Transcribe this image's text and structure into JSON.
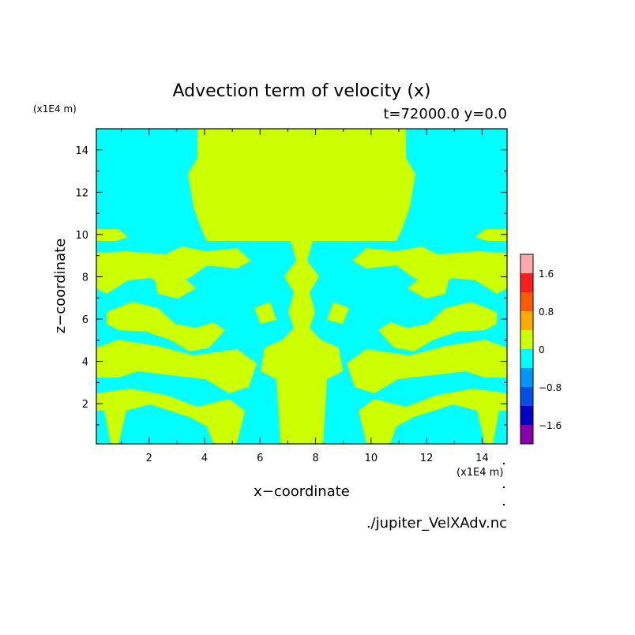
{
  "chart_data": {
    "type": "heatmap",
    "title": "Advection term of velocity (x)",
    "subtitle": "t=72000.0 y=0.0",
    "xlabel": "x−coordinate",
    "ylabel": "z−coordinate",
    "x_unit": "(x1E4 m)",
    "y_unit": "(x1E4 m)",
    "xlim": [
      0.1,
      14.9
    ],
    "ylim": [
      0.1,
      15.0
    ],
    "x_ticks": [
      2,
      4,
      6,
      8,
      10,
      12,
      14
    ],
    "y_ticks": [
      2,
      4,
      6,
      8,
      10,
      12,
      14
    ],
    "x_tick_labels": [
      "2",
      "4",
      "6",
      "8",
      "10",
      "12",
      "14"
    ],
    "y_tick_labels": [
      "2",
      "4",
      "6",
      "8",
      "10",
      "12",
      "14"
    ],
    "colorbar": {
      "levels": [
        -2.0,
        -1.6,
        -1.2,
        -0.8,
        -0.4,
        0,
        0.4,
        0.8,
        1.2,
        1.6,
        2.0
      ],
      "colors": [
        "#8800aa",
        "#0000c8",
        "#0050e6",
        "#0096ff",
        "#00ffff",
        "#ccff00",
        "#ffaa00",
        "#ff5a00",
        "#ff1e1e",
        "#ffaaaa"
      ],
      "tick_values": [
        -1.6,
        -0.8,
        0,
        0.8,
        1.6
      ],
      "tick_labels": [
        "−1.6",
        "−0.8",
        "0",
        "0.8",
        "1.6"
      ]
    },
    "regions_note": "Field alternates between slightly negative (cyan) and slightly positive (yellow-green) values, mirror-symmetric about x = 7.5",
    "source_file": "./jupiter_VelXAdv.nc"
  }
}
